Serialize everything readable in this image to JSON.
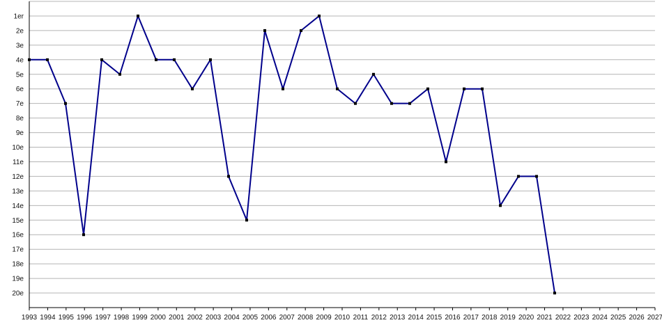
{
  "chart_data": {
    "type": "line",
    "title": "",
    "xlabel": "",
    "ylabel": "",
    "y_reversed": true,
    "ylim": [
      0,
      21
    ],
    "grid": true,
    "line_color": "#00008b",
    "marker_color": "#000000",
    "y_tick_labels": [
      "1er",
      "2e",
      "3e",
      "4e",
      "5e",
      "6e",
      "7e",
      "8e",
      "9e",
      "10e",
      "11e",
      "12e",
      "13e",
      "14e",
      "15e",
      "16e",
      "17e",
      "18e",
      "19e",
      "20e"
    ],
    "x_tick_labels": [
      "1993",
      "1994",
      "1995",
      "1996",
      "1997",
      "1998",
      "1999",
      "2000",
      "2001",
      "2002",
      "2003",
      "2004",
      "2005",
      "2006",
      "2007",
      "2008",
      "2009",
      "2010",
      "2011",
      "2012",
      "2013",
      "2014",
      "2015",
      "2016",
      "2017",
      "2018",
      "2019",
      "2020",
      "2021",
      "2022",
      "2023",
      "2024",
      "2025",
      "2026",
      "2027"
    ],
    "series": [
      {
        "x": [
          1993,
          1994,
          1995,
          1996,
          1997,
          1998,
          1999,
          2000,
          2001,
          2002,
          2003,
          2004,
          2005,
          2006,
          2007,
          2008,
          2009,
          2010,
          2011,
          2012,
          2013,
          2014,
          2015,
          2016,
          2017,
          2018,
          2019,
          2020,
          2021,
          2022
        ],
        "values": [
          4,
          4,
          7,
          16,
          4,
          5,
          1,
          4,
          4,
          6,
          4,
          12,
          15,
          2,
          6,
          2,
          1,
          6,
          7,
          5,
          7,
          7,
          6,
          11,
          6,
          6,
          14,
          12,
          12,
          20
        ]
      }
    ]
  }
}
